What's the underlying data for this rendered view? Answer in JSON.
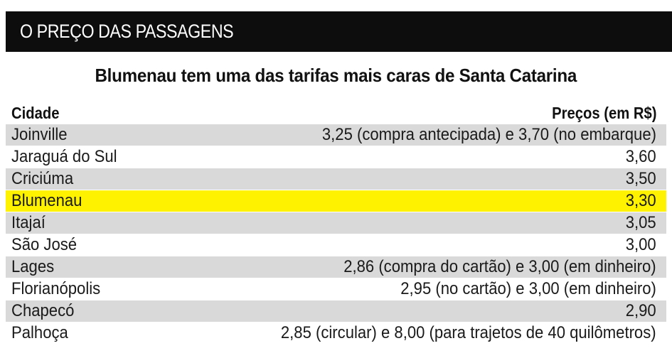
{
  "banner": "O PREÇO DAS PASSAGENS",
  "chart_data": {
    "type": "table",
    "title": "Blumenau tem uma das tarifas mais caras de Santa Catarina",
    "columns": [
      "Cidade",
      "Preços (em R$)"
    ],
    "rows": [
      {
        "city": "Joinville",
        "price": "3,25 (compra antecipada) e 3,70 (no embarque)"
      },
      {
        "city": "Jaraguá do Sul",
        "price": "3,60"
      },
      {
        "city": "Criciúma",
        "price": "3,50"
      },
      {
        "city": "Blumenau",
        "price": "3,30",
        "highlight": true
      },
      {
        "city": "Itajaí",
        "price": "3,05"
      },
      {
        "city": "São José",
        "price": "3,00"
      },
      {
        "city": "Lages",
        "price": "2,86 (compra do cartão) e 3,00 (em dinheiro)"
      },
      {
        "city": "Florianópolis",
        "price": "2,95 (no cartão) e 3,00 (em dinheiro)"
      },
      {
        "city": "Chapecó",
        "price": "2,90"
      },
      {
        "city": "Palhoça",
        "price": "2,85 (circular) e 8,00 (para trajetos de 40 quilômetros)"
      }
    ]
  },
  "colors": {
    "banner_bg": "#0d0d0d",
    "row_gray": "#d9d9d9",
    "highlight": "#fff200"
  }
}
